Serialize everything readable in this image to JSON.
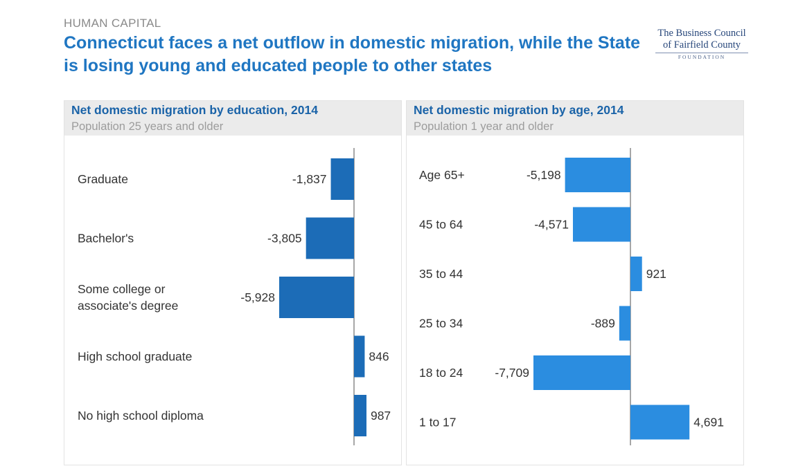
{
  "header": {
    "eyebrow": "HUMAN CAPITAL",
    "title": "Connecticut faces a net outflow in domestic migration, while the State is losing young and educated people to other states"
  },
  "logo": {
    "line1": "The Business Council",
    "line2": "of Fairfield County",
    "line3": "FOUNDATION"
  },
  "colors": {
    "title": "#1f76c2",
    "edu_bars": "#1c6cb7",
    "age_bars": "#2b8de0",
    "panel_header": "#ebebeb"
  },
  "chart_data": [
    {
      "type": "bar",
      "orientation": "horizontal",
      "title": "Net domestic migration by education, 2014",
      "subtitle": "Population 25 years and older",
      "categories": [
        "Graduate",
        "Bachelor's",
        "Some college or associate's degree",
        "High school graduate",
        "No high school diploma"
      ],
      "category_lines": [
        [
          "Graduate"
        ],
        [
          "Bachelor's"
        ],
        [
          "Some college or",
          "associate's degree"
        ],
        [
          "High school graduate"
        ],
        [
          "No high school diploma"
        ]
      ],
      "values": [
        -1837,
        -3805,
        -5928,
        846,
        987
      ],
      "value_labels": [
        "-1,837",
        "-3,805",
        "-5,928",
        "846",
        "987"
      ],
      "color": "#1c6cb7",
      "grid": false
    },
    {
      "type": "bar",
      "orientation": "horizontal",
      "title": "Net domestic migration by age, 2014",
      "subtitle": "Population 1 year and older",
      "categories": [
        "Age 65+",
        "45 to 64",
        "35 to 44",
        "25 to 34",
        "18 to 24",
        "1 to 17"
      ],
      "category_lines": [
        [
          "Age 65+"
        ],
        [
          "45 to 64"
        ],
        [
          "35 to 44"
        ],
        [
          "25 to 34"
        ],
        [
          "18 to 24"
        ],
        [
          "1 to 17"
        ]
      ],
      "values": [
        -5198,
        -4571,
        921,
        -889,
        -7709,
        4691
      ],
      "value_labels": [
        "-5,198",
        "-4,571",
        "921",
        "-889",
        "-7,709",
        "4,691"
      ],
      "color": "#2b8de0",
      "grid": false
    }
  ]
}
